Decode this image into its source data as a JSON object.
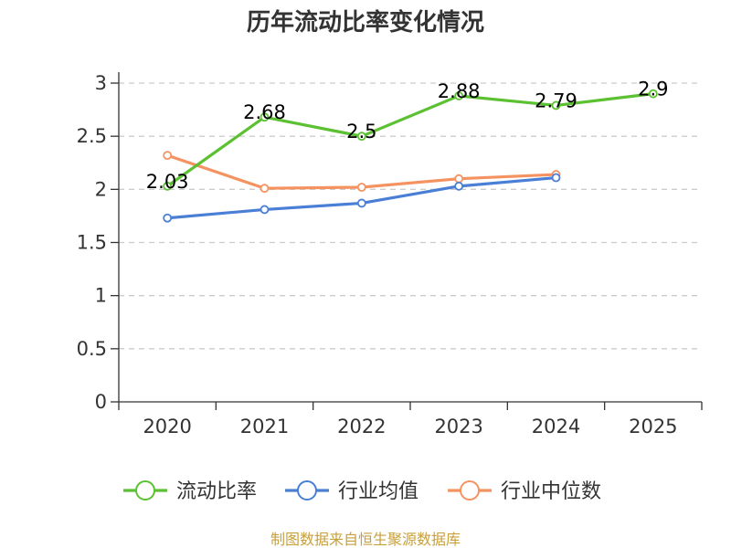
{
  "chart_data": {
    "type": "line",
    "title": "历年流动比率变化情况",
    "categories": [
      "2020",
      "2021",
      "2022",
      "2023",
      "2024",
      "2025"
    ],
    "ylim": [
      0,
      3
    ],
    "yticks": [
      "0",
      "0.5",
      "1",
      "1.5",
      "2",
      "2.5",
      "3"
    ],
    "series": [
      {
        "name": "流动比率",
        "color": "#5cc132",
        "values": [
          2.03,
          2.68,
          2.5,
          2.88,
          2.79,
          2.9
        ],
        "labels": [
          "2.03",
          "2.68",
          "2.5",
          "2.88",
          "2.79",
          "2.9"
        ]
      },
      {
        "name": "行业均值",
        "color": "#4a7fd6",
        "values": [
          1.73,
          1.81,
          1.87,
          2.03,
          2.11,
          null
        ]
      },
      {
        "name": "行业中位数",
        "color": "#f49260",
        "values": [
          2.32,
          2.01,
          2.02,
          2.1,
          2.14,
          null
        ]
      }
    ],
    "grid": true,
    "legend": "bottom"
  },
  "footer": "制图数据来自恒生聚源数据库"
}
